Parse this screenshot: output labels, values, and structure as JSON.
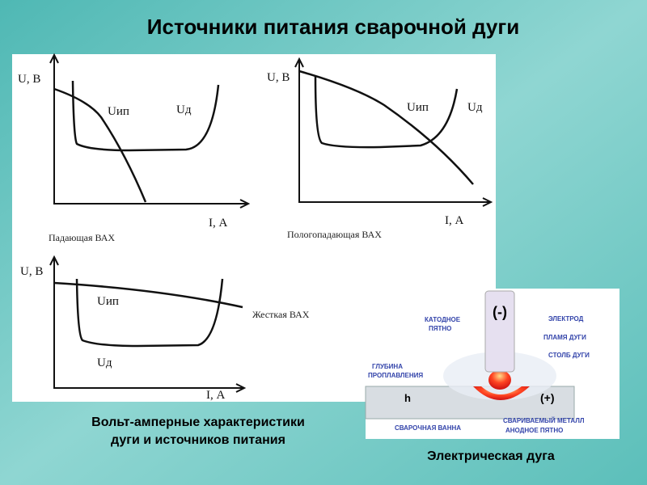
{
  "title": "Источники питания сварочной дуги",
  "graphs": [
    {
      "y_label": "U, В",
      "x_label": "I, А",
      "source_label": "Uип",
      "arc_label": "Uд",
      "caption": "Падающая ВАХ"
    },
    {
      "y_label": "U, В",
      "x_label": "I, А",
      "source_label": "Uип",
      "arc_label": "Uд",
      "caption": "Пологопадающая ВАХ"
    },
    {
      "y_label": "U, В",
      "x_label": "I, А",
      "source_label": "Uип",
      "arc_label": "Uд",
      "caption": "Жесткая ВАХ"
    }
  ],
  "graphs_caption": [
    "Вольт-амперные характеристики",
    "дуги и источников питания"
  ],
  "arc_diagram": {
    "electrode_sign": "(-)",
    "cathode_spot": [
      "КАТОДНОЕ",
      "ПЯТНО"
    ],
    "electrode": "ЭЛЕКТРОД",
    "arc_flame": "ПЛАМЯ ДУГИ",
    "arc_column": "СТОЛБ ДУГИ",
    "penetration_depth": [
      "ГЛУБИНА",
      "ПРОПЛАВЛЕНИЯ"
    ],
    "depth_symbol": "h",
    "metal_sign": "(+)",
    "weld_pool": "СВАРОЧНАЯ ВАННА",
    "base_metal": "СВАРИВАЕМЫЙ МЕТАЛЛ",
    "anode_spot": "АНОДНОЕ ПЯТНО"
  },
  "arc_caption": "Электрическая дуга"
}
